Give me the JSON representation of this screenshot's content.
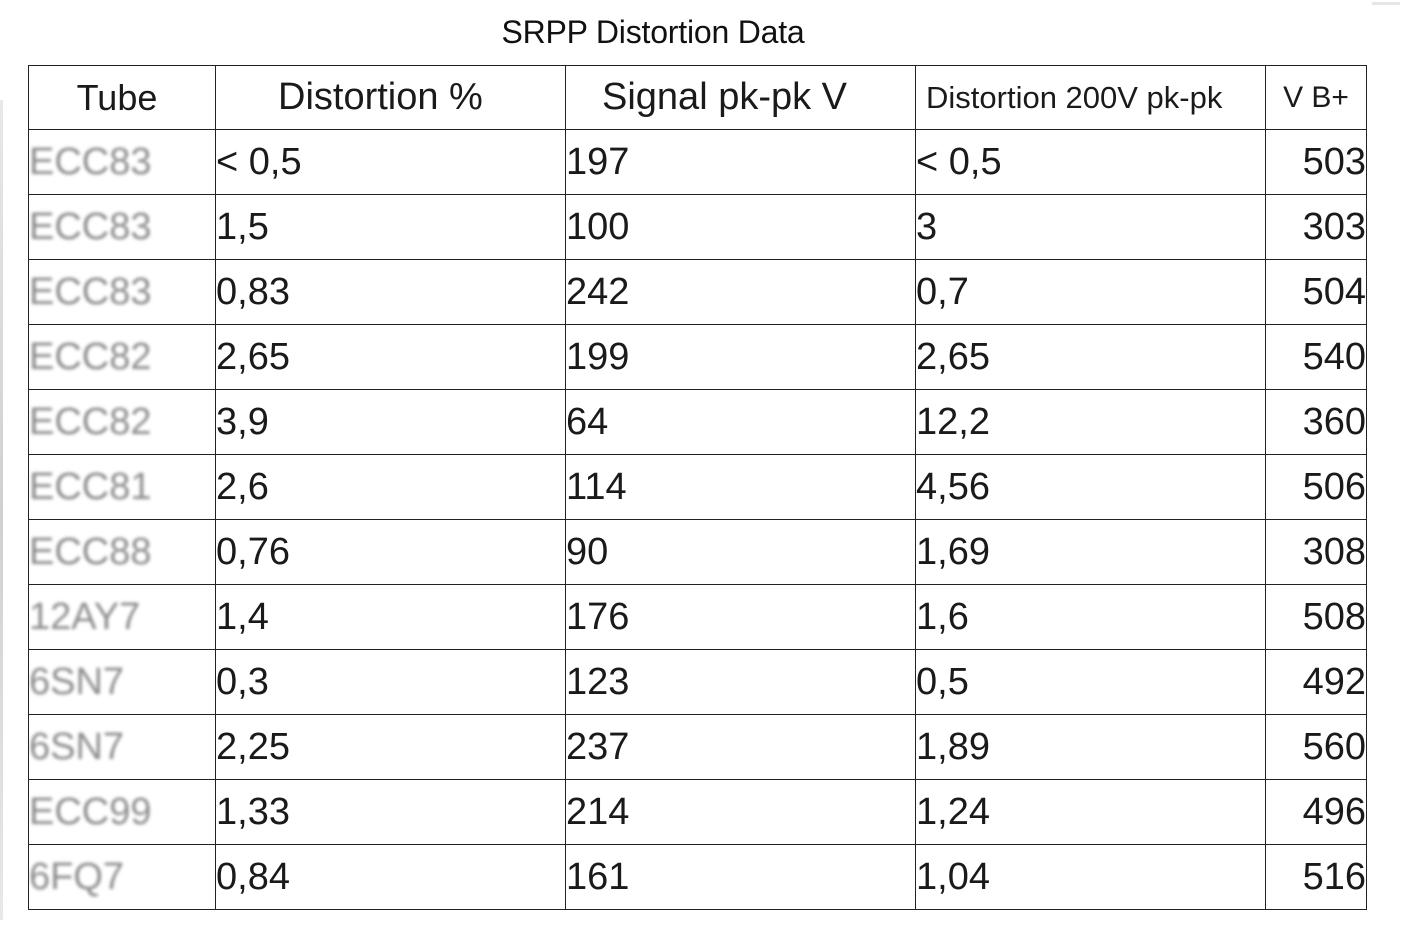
{
  "title": "SRPP Distortion Data",
  "columns": {
    "tube": "Tube",
    "distortion": "Distortion %",
    "signal": "Signal pk-pk V",
    "distortion_200v": "Distortion 200V pk-pk",
    "vb": "V B+"
  },
  "rows": [
    {
      "tube": "ECC83",
      "distortion": "< 0,5",
      "signal": "197",
      "distortion_200v": "< 0,5",
      "vb": "503"
    },
    {
      "tube": "ECC83",
      "distortion": "1,5",
      "signal": "100",
      "distortion_200v": "3",
      "vb": "303"
    },
    {
      "tube": "ECC83",
      "distortion": "0,83",
      "signal": "242",
      "distortion_200v": "0,7",
      "vb": "504"
    },
    {
      "tube": "ECC82",
      "distortion": "2,65",
      "signal": "199",
      "distortion_200v": "2,65",
      "vb": "540"
    },
    {
      "tube": "ECC82",
      "distortion": "3,9",
      "signal": "64",
      "distortion_200v": "12,2",
      "vb": "360"
    },
    {
      "tube": "ECC81",
      "distortion": "2,6",
      "signal": "114",
      "distortion_200v": "4,56",
      "vb": "506"
    },
    {
      "tube": "ECC88",
      "distortion": "0,76",
      "signal": "90",
      "distortion_200v": "1,69",
      "vb": "308"
    },
    {
      "tube": "12AY7",
      "distortion": "1,4",
      "signal": "176",
      "distortion_200v": "1,6",
      "vb": "508"
    },
    {
      "tube": "6SN7",
      "distortion": "0,3",
      "signal": "123",
      "distortion_200v": "0,5",
      "vb": "492"
    },
    {
      "tube": "6SN7",
      "distortion": "2,25",
      "signal": "237",
      "distortion_200v": "1,89",
      "vb": "560"
    },
    {
      "tube": "ECC99",
      "distortion": "1,33",
      "signal": "214",
      "distortion_200v": "1,24",
      "vb": "496"
    },
    {
      "tube": "6FQ7",
      "distortion": "0,84",
      "signal": "161",
      "distortion_200v": "1,04",
      "vb": "516"
    }
  ]
}
